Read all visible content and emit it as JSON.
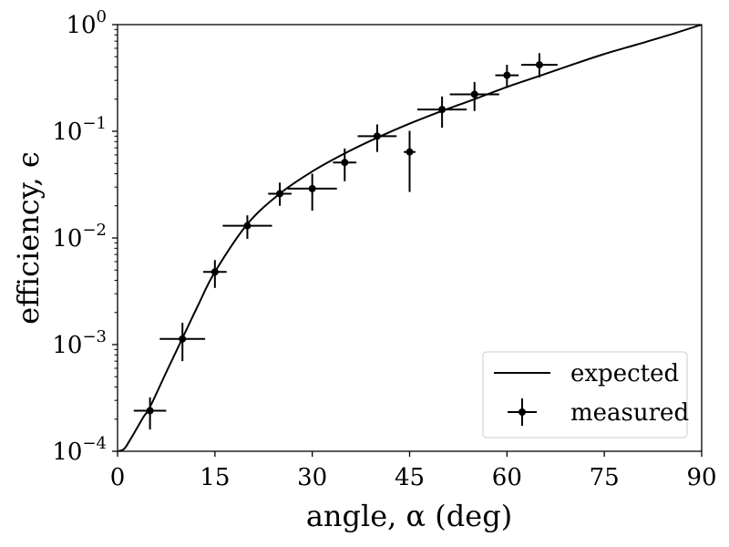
{
  "chart_data": {
    "type": "scatter",
    "xlabel": "angle, α (deg)",
    "ylabel": "efficiency, ϵ",
    "xlim": [
      0,
      90
    ],
    "ylim": [
      0.0001,
      1
    ],
    "y_scale": "log",
    "grid": false,
    "legend_placement": "lower-right",
    "x_ticks": [
      0,
      15,
      30,
      45,
      60,
      75,
      90
    ],
    "x_tick_labels": [
      "0",
      "15",
      "30",
      "45",
      "60",
      "75",
      "90"
    ],
    "y_ticks": [
      0.0001,
      0.001,
      0.01,
      0.1,
      1
    ],
    "y_tick_labels": [
      {
        "base": "10",
        "exp": "−4"
      },
      {
        "base": "10",
        "exp": "−3"
      },
      {
        "base": "10",
        "exp": "−2"
      },
      {
        "base": "10",
        "exp": "−1"
      },
      {
        "base": "10",
        "exp": "0"
      }
    ],
    "series": [
      {
        "name": "expected",
        "kind": "line",
        "color": "#000000",
        "x": [
          0,
          1,
          2,
          3,
          4,
          5,
          7.5,
          10,
          12.5,
          15,
          20,
          25,
          30,
          35,
          40,
          45,
          50,
          55,
          60,
          65,
          70,
          75,
          80,
          85,
          90
        ],
        "y": [
          0.0001,
          0.000105,
          0.00013,
          0.000165,
          0.00021,
          0.00026,
          0.00055,
          0.00115,
          0.0024,
          0.0048,
          0.0135,
          0.026,
          0.042,
          0.062,
          0.087,
          0.118,
          0.155,
          0.2,
          0.26,
          0.33,
          0.42,
          0.53,
          0.65,
          0.8,
          1.0
        ]
      },
      {
        "name": "measured",
        "kind": "errorbar",
        "color": "#000000",
        "points": [
          {
            "x": 5,
            "y": 0.00024,
            "xerr": 2.5,
            "y_lo": 0.00016,
            "y_hi": 0.00032
          },
          {
            "x": 10,
            "y": 0.00113,
            "xerr": 3.5,
            "y_lo": 0.0007,
            "y_hi": 0.0016
          },
          {
            "x": 15,
            "y": 0.0048,
            "xerr": 1.8,
            "y_lo": 0.0034,
            "y_hi": 0.0062
          },
          {
            "x": 20,
            "y": 0.013,
            "xerr": 3.8,
            "y_lo": 0.0098,
            "y_hi": 0.0163
          },
          {
            "x": 25,
            "y": 0.026,
            "xerr": 1.8,
            "y_lo": 0.02,
            "y_hi": 0.033
          },
          {
            "x": 30,
            "y": 0.029,
            "xerr": 3.8,
            "y_lo": 0.018,
            "y_hi": 0.04
          },
          {
            "x": 35,
            "y": 0.051,
            "xerr": 1.8,
            "y_lo": 0.034,
            "y_hi": 0.069
          },
          {
            "x": 40,
            "y": 0.09,
            "xerr": 3.0,
            "y_lo": 0.064,
            "y_hi": 0.116
          },
          {
            "x": 45,
            "y": 0.064,
            "xerr": 0.9,
            "y_lo": 0.027,
            "y_hi": 0.101
          },
          {
            "x": 50,
            "y": 0.16,
            "xerr": 3.8,
            "y_lo": 0.108,
            "y_hi": 0.212
          },
          {
            "x": 55,
            "y": 0.222,
            "xerr": 3.8,
            "y_lo": 0.155,
            "y_hi": 0.29
          },
          {
            "x": 60,
            "y": 0.335,
            "xerr": 1.8,
            "y_lo": 0.255,
            "y_hi": 0.42
          },
          {
            "x": 65,
            "y": 0.42,
            "xerr": 2.8,
            "y_lo": 0.32,
            "y_hi": 0.54
          }
        ]
      }
    ]
  }
}
